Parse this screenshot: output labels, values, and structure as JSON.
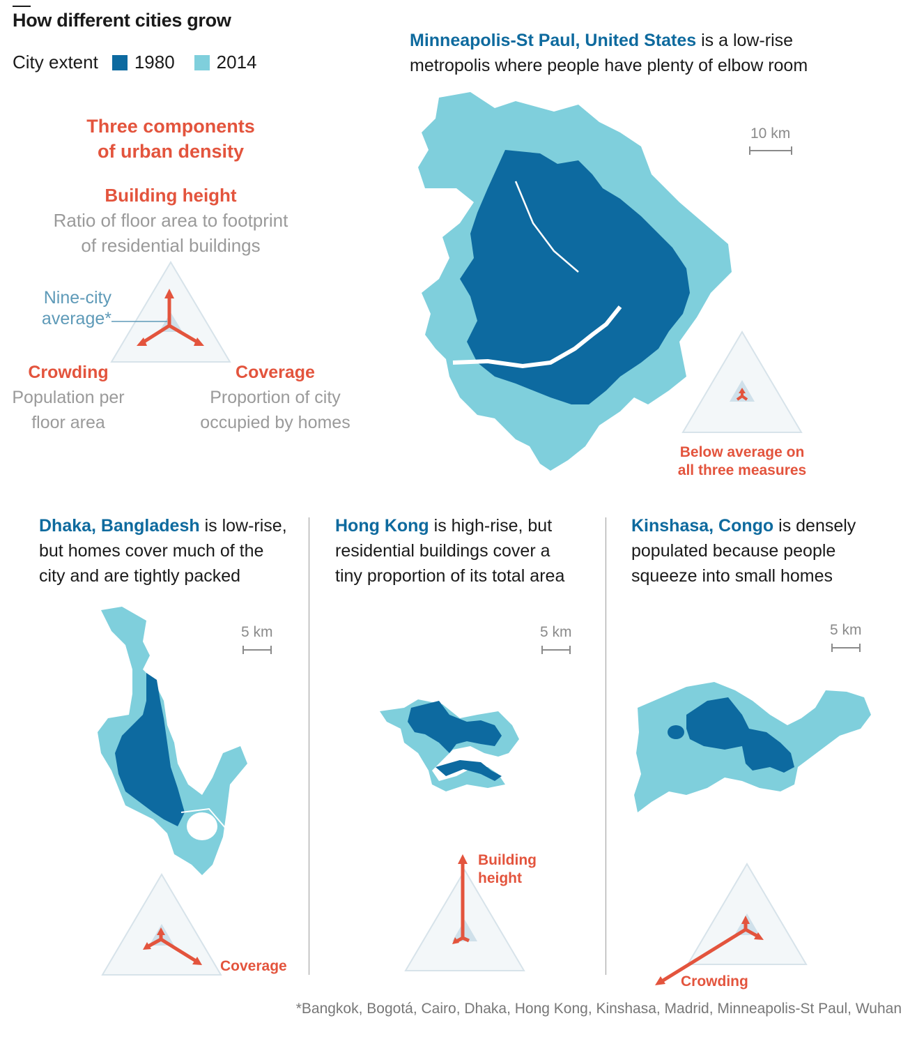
{
  "header": {
    "title": "How different cities grow",
    "legend_label": "City extent",
    "legend_items": [
      {
        "label": "1980",
        "color": "#0d6aa0"
      },
      {
        "label": "2014",
        "color": "#7fcfdc"
      }
    ]
  },
  "key": {
    "heading_line1": "Three components",
    "heading_line2": "of urban density",
    "building_height": {
      "title": "Building height",
      "desc_line1": "Ratio of floor area to footprint",
      "desc_line2": "of residential buildings"
    },
    "average_label_line1": "Nine-city",
    "average_label_line2": "average*",
    "crowding": {
      "title": "Crowding",
      "desc_line1": "Population per",
      "desc_line2": "floor area"
    },
    "coverage": {
      "title": "Coverage",
      "desc_line1": "Proportion of city",
      "desc_line2": "occupied by homes"
    }
  },
  "cities": {
    "minneapolis": {
      "name": "Minneapolis-St Paul, United States",
      "desc_line1": " is a low-rise",
      "desc_line2": "metropolis where people have plenty of elbow room",
      "scale": "10 km",
      "annotation_line1": "Below average on",
      "annotation_line2": "all three measures"
    },
    "dhaka": {
      "name": "Dhaka, Bangladesh",
      "desc_line1": " is low-rise,",
      "desc_line2": "but homes cover much of the",
      "desc_line3": "city and are tightly packed",
      "scale": "5 km",
      "annotation": "Coverage"
    },
    "hongkong": {
      "name": "Hong Kong",
      "desc_line1": " is high-rise, but",
      "desc_line2": "residential buildings cover a",
      "desc_line3": "tiny proportion of its total area",
      "scale": "5 km",
      "annotation_line1": "Building",
      "annotation_line2": "height"
    },
    "kinshasa": {
      "name": "Kinshasa, Congo",
      "desc_line1": " is densely",
      "desc_line2": "populated because people",
      "desc_line3": "squeeze into small homes",
      "scale": "5 km",
      "annotation": "Crowding"
    }
  },
  "footnote": "*Bangkok, Bogotá, Cairo, Dhaka, Hong Kong, Kinshasa, Madrid, Minneapolis-St Paul, Wuhan",
  "colors": {
    "extent_1980": "#0d6aa0",
    "extent_2014": "#7fcfdc",
    "arrows": "#e3543d",
    "city_name": "#0e6a9e",
    "average": "#cfe0ea"
  }
}
